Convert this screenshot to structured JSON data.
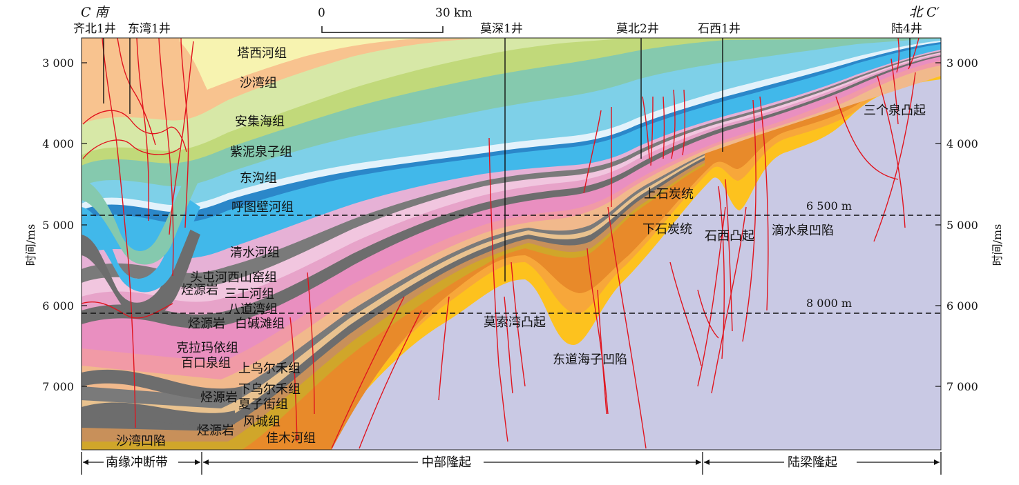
{
  "header": {
    "left_end": "C 南",
    "right_end": "北 C′",
    "scale_start": "0",
    "scale_end": "30 km"
  },
  "wells": [
    {
      "label": "齐北1井"
    },
    {
      "label": "东湾1井"
    },
    {
      "label": "莫深1井"
    },
    {
      "label": "莫北2井"
    },
    {
      "label": "石西1井"
    },
    {
      "label": "陆4井"
    }
  ],
  "axes": {
    "y_label": "时间/ms",
    "ticks": [
      "3 000",
      "4 000",
      "5 000",
      "6 000",
      "7 000"
    ],
    "ticks_right": [
      "3 000",
      "4 000",
      "5 000",
      "6 000",
      "7 000"
    ]
  },
  "depth_lines": [
    {
      "label": "6 500 m"
    },
    {
      "label": "8 000 m"
    }
  ],
  "formations": [
    {
      "label": "塔西河组"
    },
    {
      "label": "沙湾组"
    },
    {
      "label": "安集海组"
    },
    {
      "label": "紫泥泉子组"
    },
    {
      "label": "东沟组"
    },
    {
      "label": "呼图壁河组"
    },
    {
      "label": "清水河组"
    },
    {
      "label": "头屯河西山窑组"
    },
    {
      "label": "烃源岩"
    },
    {
      "label": "三工河组"
    },
    {
      "label": "八道湾组"
    },
    {
      "label": "烃源岩"
    },
    {
      "label": "白碱滩组"
    },
    {
      "label": "克拉玛依组"
    },
    {
      "label": "百口泉组"
    },
    {
      "label": "上乌尔禾组"
    },
    {
      "label": "下乌尔禾组"
    },
    {
      "label": "烃源岩"
    },
    {
      "label": "夏子街组"
    },
    {
      "label": "风城组"
    },
    {
      "label": "烃源岩"
    },
    {
      "label": "佳木河组"
    },
    {
      "label": "上石炭统"
    },
    {
      "label": "下石炭统"
    }
  ],
  "structures": [
    {
      "label": "莫索湾凸起"
    },
    {
      "label": "东道海子凹陷"
    },
    {
      "label": "石西凸起"
    },
    {
      "label": "滴水泉凹陷"
    },
    {
      "label": "三个泉凸起"
    },
    {
      "label": "沙湾凹陷"
    }
  ],
  "zones": [
    {
      "label": "南缘冲断带"
    },
    {
      "label": "中部隆起"
    },
    {
      "label": "陆梁隆起"
    }
  ],
  "colors": {
    "basement": "#c9c9e4",
    "carb_upper": "#f7a73a",
    "carb_lower": "#fdc21e",
    "fault": "#e0141e",
    "source_rock": "#6d6d6d",
    "K_blue": "#41b8ea",
    "K_dark": "#2b87c9",
    "Paleogene_green": "#c9de86",
    "Neogene_orange": "#f8c38f"
  }
}
